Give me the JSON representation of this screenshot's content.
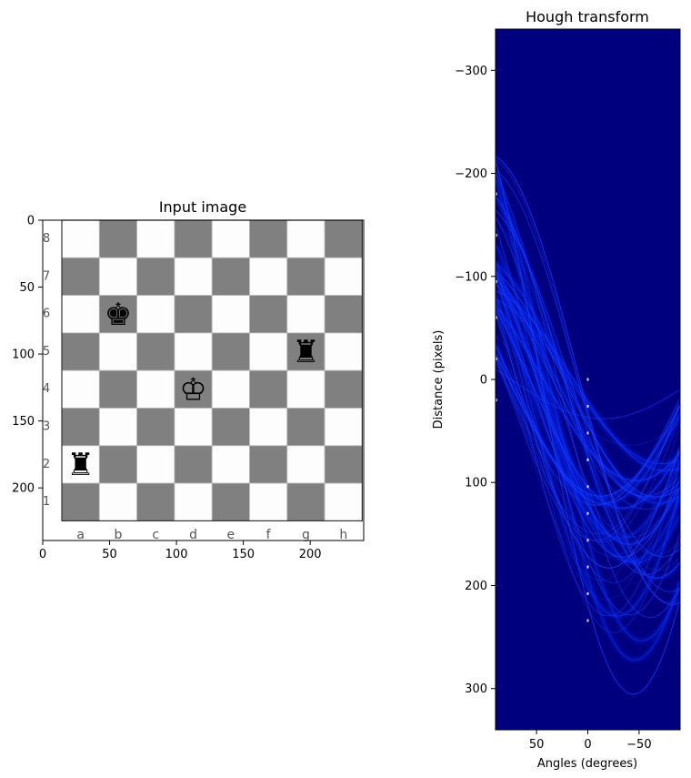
{
  "chart_data": [
    {
      "type": "image",
      "title": "Input image",
      "xlabel": "",
      "ylabel": "",
      "xticks": [
        0,
        50,
        100,
        150,
        200
      ],
      "yticks": [
        0,
        50,
        100,
        150,
        200
      ],
      "xlim": [
        0,
        240
      ],
      "ylim": [
        240,
        0
      ],
      "board": {
        "files": [
          "a",
          "b",
          "c",
          "d",
          "e",
          "f",
          "g",
          "h"
        ],
        "ranks": [
          "8",
          "7",
          "6",
          "5",
          "4",
          "3",
          "2",
          "1"
        ],
        "light_square": "#fdfdfd",
        "dark_square": "#808080",
        "pieces": [
          {
            "name": "black-king",
            "glyph": "♚",
            "square": "b6"
          },
          {
            "name": "black-rook",
            "glyph": "♜",
            "square": "g5"
          },
          {
            "name": "white-king",
            "glyph": "♔",
            "square": "d4"
          },
          {
            "name": "black-rook",
            "glyph": "♜",
            "square": "a2"
          }
        ]
      }
    },
    {
      "type": "heatmap",
      "title": "Hough transform",
      "xlabel": "Angles (degrees)",
      "ylabel": "Distance (pixels)",
      "xticks": [
        50,
        0,
        -50
      ],
      "xlim": [
        90,
        -90
      ],
      "yticks": [
        -300,
        -200,
        -100,
        0,
        100,
        200,
        300
      ],
      "ylim": [
        340,
        -340
      ],
      "colormap": "jet",
      "background_color": "#00007f",
      "curve_color": "#1a3cff"
    }
  ]
}
